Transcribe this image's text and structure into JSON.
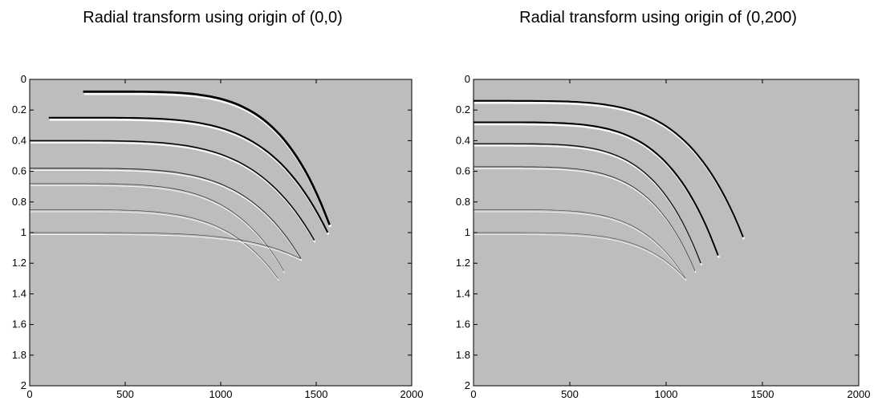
{
  "chart_data": [
    {
      "type": "image",
      "title": "Radial transform using origin of (0,0)",
      "xlim": [
        0,
        2000
      ],
      "xticks": [
        0,
        500,
        1000,
        1500,
        2000
      ],
      "ylim": [
        0,
        2
      ],
      "yticks": [
        0,
        0.2,
        0.4,
        0.6,
        0.8,
        1,
        1.2,
        1.4,
        1.6,
        1.8,
        2
      ],
      "y_inverted": true,
      "background": "#bdbdbd"
    },
    {
      "type": "image",
      "title": "Radial transform using origin of (0,200)",
      "xlim": [
        0,
        2000
      ],
      "xticks": [
        0,
        500,
        1000,
        1500,
        2000
      ],
      "ylim": [
        0,
        2
      ],
      "yticks": [
        0,
        0.2,
        0.4,
        0.6,
        0.8,
        1,
        1.2,
        1.4,
        1.6,
        1.8,
        2
      ],
      "y_inverted": true,
      "background": "#bdbdbd"
    }
  ]
}
